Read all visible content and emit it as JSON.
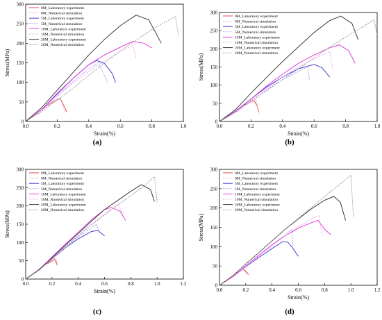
{
  "chart_data": [
    {
      "id": "a",
      "type": "line",
      "panel_label": "(a)",
      "xlabel": "Strain(%)",
      "ylabel": "Stress(MPa)",
      "xlim": [
        0.0,
        1.0
      ],
      "ylim": [
        0,
        300
      ],
      "xticks": [
        "0.0",
        "0.2",
        "0.4",
        "0.6",
        "0.8",
        "1.0"
      ],
      "yticks": [
        "0",
        "50",
        "100",
        "150",
        "200",
        "250",
        "300"
      ],
      "legend_position": "top-left",
      "series": [
        {
          "name": "0M_Laboratory experiment",
          "color": "#e8474f",
          "dash": false,
          "x": [
            0,
            0.05,
            0.1,
            0.15,
            0.2,
            0.22,
            0.24,
            0.26
          ],
          "y": [
            0,
            14,
            30,
            45,
            56,
            58,
            42,
            25
          ]
        },
        {
          "name": "0M_Numerical simulation",
          "color": "#f2a6a6",
          "dash": true,
          "x": [
            0,
            0.05,
            0.1,
            0.15,
            0.2,
            0.22,
            0.25
          ],
          "y": [
            0,
            13,
            28,
            43,
            56,
            60,
            22
          ]
        },
        {
          "name": "5M_Laboratory experiment",
          "color": "#4a3fd1",
          "dash": false,
          "x": [
            0,
            0.1,
            0.2,
            0.3,
            0.4,
            0.45,
            0.5,
            0.55,
            0.57
          ],
          "y": [
            0,
            30,
            70,
            110,
            145,
            156,
            148,
            122,
            100
          ]
        },
        {
          "name": "5M_Numerical simulation",
          "color": "#a9a3f0",
          "dash": true,
          "x": [
            0,
            0.1,
            0.2,
            0.3,
            0.4,
            0.46,
            0.52
          ],
          "y": [
            0,
            28,
            65,
            102,
            135,
            150,
            100
          ]
        },
        {
          "name": "10M_Laboratory experiment",
          "color": "#e03ce0",
          "dash": false,
          "x": [
            0,
            0.1,
            0.2,
            0.3,
            0.4,
            0.5,
            0.6,
            0.68,
            0.75,
            0.8
          ],
          "y": [
            0,
            30,
            72,
            110,
            145,
            170,
            190,
            205,
            200,
            188
          ]
        },
        {
          "name": "10M_Numerical simulation",
          "color": "#f3a6f3",
          "dash": true,
          "x": [
            0,
            0.1,
            0.2,
            0.3,
            0.4,
            0.5,
            0.6,
            0.68,
            0.7
          ],
          "y": [
            0,
            28,
            64,
            98,
            128,
            155,
            178,
            195,
            160
          ]
        },
        {
          "name": "20M_Laboratory experiment",
          "color": "#3a3a3a",
          "dash": false,
          "x": [
            0,
            0.1,
            0.2,
            0.3,
            0.4,
            0.5,
            0.6,
            0.7,
            0.78,
            0.86
          ],
          "y": [
            0,
            35,
            80,
            125,
            170,
            210,
            245,
            272,
            260,
            200
          ]
        },
        {
          "name": "20M_Numerical simulation",
          "color": "#9a9a9a",
          "dash": true,
          "x": [
            0,
            0.1,
            0.2,
            0.3,
            0.4,
            0.5,
            0.6,
            0.7,
            0.8,
            0.9,
            0.95,
            0.97
          ],
          "y": [
            0,
            25,
            55,
            85,
            118,
            150,
            180,
            208,
            235,
            258,
            268,
            215
          ]
        }
      ]
    },
    {
      "id": "b",
      "type": "line",
      "panel_label": "(b)",
      "xlabel": "Strain(%)",
      "ylabel": "Stress(MPa)",
      "xlim": [
        0.0,
        1.0
      ],
      "ylim": [
        0,
        300
      ],
      "xticks": [
        "0.0",
        "0.2",
        "0.4",
        "0.6",
        "0.8",
        "1.0"
      ],
      "yticks": [
        "0",
        "50",
        "100",
        "150",
        "200",
        "250",
        "300"
      ],
      "legend_position": "top-left",
      "series": [
        {
          "name": "0M_Laboratory experiment",
          "color": "#e8474f",
          "dash": false,
          "x": [
            0,
            0.05,
            0.1,
            0.15,
            0.2,
            0.22,
            0.24,
            0.25
          ],
          "y": [
            0,
            13,
            28,
            44,
            55,
            57,
            42,
            26
          ]
        },
        {
          "name": "0M_Numerical simulation",
          "color": "#f2a6a6",
          "dash": true,
          "x": [
            0,
            0.05,
            0.1,
            0.15,
            0.2,
            0.23,
            0.25
          ],
          "y": [
            0,
            12,
            27,
            42,
            54,
            60,
            22
          ]
        },
        {
          "name": "5M_Laboratory experiment",
          "color": "#4a3fd1",
          "dash": false,
          "x": [
            0,
            0.1,
            0.2,
            0.3,
            0.4,
            0.5,
            0.6,
            0.65,
            0.7
          ],
          "y": [
            0,
            28,
            62,
            95,
            122,
            145,
            157,
            148,
            122
          ]
        },
        {
          "name": "5M_Numerical simulation",
          "color": "#a9a3f0",
          "dash": true,
          "x": [
            0,
            0.1,
            0.2,
            0.3,
            0.4,
            0.5,
            0.56,
            0.57
          ],
          "y": [
            0,
            26,
            58,
            88,
            115,
            138,
            152,
            115
          ]
        },
        {
          "name": "10M_Laboratory experiment",
          "color": "#e03ce0",
          "dash": false,
          "x": [
            0,
            0.1,
            0.2,
            0.3,
            0.4,
            0.5,
            0.6,
            0.7,
            0.76,
            0.82,
            0.86
          ],
          "y": [
            0,
            27,
            62,
            98,
            130,
            160,
            183,
            203,
            211,
            195,
            160
          ]
        },
        {
          "name": "10M_Numerical simulation",
          "color": "#f3a6f3",
          "dash": true,
          "x": [
            0,
            0.1,
            0.2,
            0.3,
            0.4,
            0.5,
            0.6,
            0.7,
            0.72
          ],
          "y": [
            0,
            25,
            57,
            90,
            122,
            150,
            172,
            192,
            140
          ]
        },
        {
          "name": "20M_Laboratory experiment",
          "color": "#3a3a3a",
          "dash": false,
          "x": [
            0,
            0.1,
            0.2,
            0.3,
            0.4,
            0.5,
            0.6,
            0.7,
            0.77,
            0.84,
            0.88
          ],
          "y": [
            0,
            32,
            78,
            122,
            165,
            205,
            245,
            278,
            290,
            270,
            225
          ]
        },
        {
          "name": "20M_Numerical simulation",
          "color": "#9a9a9a",
          "dash": true,
          "x": [
            0,
            0.1,
            0.2,
            0.3,
            0.4,
            0.5,
            0.6,
            0.7,
            0.8,
            0.9,
            0.98,
            1.0
          ],
          "y": [
            0,
            24,
            55,
            85,
            115,
            145,
            175,
            205,
            232,
            258,
            280,
            240
          ]
        }
      ]
    },
    {
      "id": "c",
      "type": "line",
      "panel_label": "(c)",
      "xlabel": "Strain(%)",
      "ylabel": "Stress(MPa)",
      "xlim": [
        0.0,
        1.2
      ],
      "ylim": [
        0,
        300
      ],
      "xticks": [
        "0.0",
        "0.2",
        "0.4",
        "0.6",
        "0.8",
        "1.0",
        "1.2"
      ],
      "yticks": [
        "0",
        "50",
        "100",
        "150",
        "200",
        "250",
        "300"
      ],
      "legend_position": "top-left",
      "series": [
        {
          "name": "0M_Laboratory experiment",
          "color": "#e8474f",
          "dash": false,
          "x": [
            0,
            0.05,
            0.1,
            0.15,
            0.2,
            0.22,
            0.24
          ],
          "y": [
            0,
            12,
            26,
            40,
            50,
            55,
            38
          ]
        },
        {
          "name": "0M_Numerical simulation",
          "color": "#f2a6a6",
          "dash": true,
          "x": [
            0,
            0.05,
            0.1,
            0.15,
            0.2,
            0.23,
            0.24
          ],
          "y": [
            0,
            11,
            24,
            38,
            48,
            56,
            40
          ]
        },
        {
          "name": "5M_Laboratory experiment",
          "color": "#4a3fd1",
          "dash": false,
          "x": [
            0,
            0.1,
            0.2,
            0.3,
            0.4,
            0.5,
            0.55,
            0.6
          ],
          "y": [
            0,
            25,
            55,
            85,
            110,
            130,
            133,
            118
          ]
        },
        {
          "name": "5M_Numerical simulation",
          "color": "#a9a3f0",
          "dash": true,
          "x": [
            0,
            0.1,
            0.2,
            0.3,
            0.4,
            0.5,
            0.54,
            0.56
          ],
          "y": [
            0,
            24,
            55,
            85,
            115,
            140,
            150,
            125
          ]
        },
        {
          "name": "10M_Laboratory experiment",
          "color": "#e03ce0",
          "dash": false,
          "x": [
            0,
            0.1,
            0.2,
            0.3,
            0.4,
            0.5,
            0.6,
            0.65,
            0.72,
            0.76
          ],
          "y": [
            0,
            25,
            60,
            95,
            128,
            162,
            190,
            196,
            185,
            160
          ]
        },
        {
          "name": "10M_Numerical simulation",
          "color": "#f3a6f3",
          "dash": true,
          "x": [
            0,
            0.1,
            0.2,
            0.3,
            0.4,
            0.5,
            0.6,
            0.7,
            0.74
          ],
          "y": [
            0,
            23,
            55,
            88,
            120,
            150,
            178,
            205,
            175
          ]
        },
        {
          "name": "20M_Laboratory experiment",
          "color": "#3a3a3a",
          "dash": false,
          "x": [
            0,
            0.1,
            0.2,
            0.3,
            0.4,
            0.5,
            0.6,
            0.7,
            0.8,
            0.88,
            0.95,
            0.98
          ],
          "y": [
            0,
            25,
            58,
            92,
            125,
            158,
            190,
            215,
            240,
            258,
            245,
            212
          ]
        },
        {
          "name": "20M_Numerical simulation",
          "color": "#9a9a9a",
          "dash": true,
          "x": [
            0,
            0.1,
            0.2,
            0.3,
            0.4,
            0.5,
            0.6,
            0.7,
            0.8,
            0.9,
            0.98,
            1.0
          ],
          "y": [
            0,
            24,
            56,
            88,
            118,
            148,
            175,
            202,
            228,
            254,
            280,
            210
          ]
        }
      ]
    },
    {
      "id": "d",
      "type": "line",
      "panel_label": "(d)",
      "xlabel": "Strain(%)",
      "ylabel": "Stress(MPa)",
      "xlim": [
        0.0,
        1.2
      ],
      "ylim": [
        0,
        300
      ],
      "xticks": [
        "0.0",
        "0.2",
        "0.4",
        "0.6",
        "0.8",
        "1.0",
        "1.2"
      ],
      "yticks": [
        "0",
        "50",
        "100",
        "150",
        "200",
        "250",
        "300"
      ],
      "legend_position": "top-left",
      "series": [
        {
          "name": "0M_Laboratory experiment",
          "color": "#e8474f",
          "dash": false,
          "x": [
            0,
            0.05,
            0.1,
            0.15,
            0.18,
            0.2,
            0.22
          ],
          "y": [
            0,
            12,
            25,
            36,
            42,
            35,
            28
          ]
        },
        {
          "name": "0M_Numerical simulation",
          "color": "#f2a6a6",
          "dash": true,
          "x": [
            0,
            0.05,
            0.1,
            0.15,
            0.18,
            0.2,
            0.23
          ],
          "y": [
            0,
            11,
            24,
            36,
            43,
            38,
            25
          ]
        },
        {
          "name": "5M_Laboratory experiment",
          "color": "#4a3fd1",
          "dash": false,
          "x": [
            0,
            0.1,
            0.2,
            0.3,
            0.4,
            0.48,
            0.52,
            0.56,
            0.6
          ],
          "y": [
            0,
            22,
            48,
            72,
            95,
            113,
            112,
            95,
            75
          ]
        },
        {
          "name": "5M_Numerical simulation",
          "color": "#a9a3f0",
          "dash": true,
          "x": [
            0,
            0.1,
            0.2,
            0.3,
            0.4,
            0.5,
            0.55,
            0.56
          ],
          "y": [
            0,
            22,
            50,
            78,
            105,
            130,
            145,
            100
          ]
        },
        {
          "name": "10M_Laboratory experiment",
          "color": "#e03ce0",
          "dash": false,
          "x": [
            0,
            0.1,
            0.2,
            0.3,
            0.4,
            0.5,
            0.6,
            0.7,
            0.75,
            0.8,
            0.85
          ],
          "y": [
            0,
            22,
            50,
            78,
            105,
            128,
            148,
            162,
            168,
            145,
            130
          ]
        },
        {
          "name": "10M_Numerical simulation",
          "color": "#f3a6f3",
          "dash": true,
          "x": [
            0,
            0.1,
            0.2,
            0.3,
            0.4,
            0.5,
            0.6,
            0.7,
            0.76,
            0.78
          ],
          "y": [
            0,
            21,
            48,
            75,
            102,
            128,
            152,
            172,
            180,
            125
          ]
        },
        {
          "name": "20M_Laboratory experiment",
          "color": "#3a3a3a",
          "dash": false,
          "x": [
            0,
            0.1,
            0.2,
            0.3,
            0.4,
            0.5,
            0.6,
            0.7,
            0.8,
            0.87,
            0.92,
            0.96
          ],
          "y": [
            0,
            24,
            55,
            85,
            115,
            145,
            172,
            198,
            220,
            230,
            215,
            168
          ]
        },
        {
          "name": "20M_Numerical simulation",
          "color": "#9a9a9a",
          "dash": true,
          "x": [
            0,
            0.1,
            0.2,
            0.3,
            0.4,
            0.5,
            0.6,
            0.7,
            0.8,
            0.9,
            1.0,
            1.02
          ],
          "y": [
            0,
            24,
            55,
            85,
            115,
            145,
            173,
            202,
            230,
            257,
            285,
            175
          ]
        }
      ]
    }
  ]
}
